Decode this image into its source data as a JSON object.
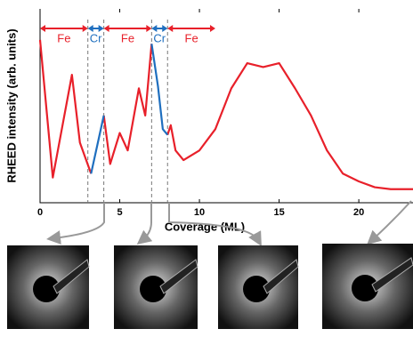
{
  "chart_data": {
    "type": "line",
    "xlabel": "Coverage (ML)",
    "ylabel": "RHEED intensity (arb. units)",
    "x": [
      0,
      0.8,
      2,
      2.5,
      3.2,
      3.6,
      4,
      4.4,
      5,
      5.5,
      6.2,
      6.6,
      7,
      7.4,
      7.7,
      8,
      8.2,
      8.5,
      9,
      10,
      11,
      12,
      13,
      14,
      15,
      16,
      17,
      18,
      19,
      20,
      21,
      22,
      23.4
    ],
    "series": [
      {
        "name": "Fe",
        "color": "#e8202a",
        "values": [
          84,
          13,
          66,
          31,
          15,
          null,
          45,
          20,
          36,
          27,
          59,
          45,
          82,
          null,
          null,
          35,
          40,
          27,
          22,
          27,
          38,
          59,
          72,
          70,
          72,
          59,
          45,
          27,
          15,
          11,
          8,
          7,
          7
        ]
      },
      {
        "name": "Cr",
        "color": "#1f6fbf",
        "values": [
          null,
          null,
          null,
          null,
          15,
          30,
          45,
          null,
          null,
          null,
          null,
          null,
          82,
          60,
          38,
          35,
          null,
          null,
          null,
          null,
          null,
          null,
          null,
          null,
          null,
          null,
          null,
          null,
          null,
          null,
          null,
          null,
          null
        ]
      }
    ],
    "regions": [
      {
        "label": "Fe",
        "start": 0,
        "end": 3,
        "color": "#e8202a"
      },
      {
        "label": "Cr",
        "start": 3,
        "end": 4,
        "color": "#1f6fbf"
      },
      {
        "label": "Fe",
        "start": 4,
        "end": 7,
        "color": "#e8202a"
      },
      {
        "label": "Cr",
        "start": 7,
        "end": 8,
        "color": "#1f6fbf"
      },
      {
        "label": "Fe",
        "start": 8,
        "end": 11,
        "color": "#e8202a"
      }
    ],
    "xlim": [
      0,
      23.4
    ],
    "xticks": [
      0,
      5,
      10,
      15,
      20
    ],
    "ylim": [
      0,
      100
    ]
  }
}
